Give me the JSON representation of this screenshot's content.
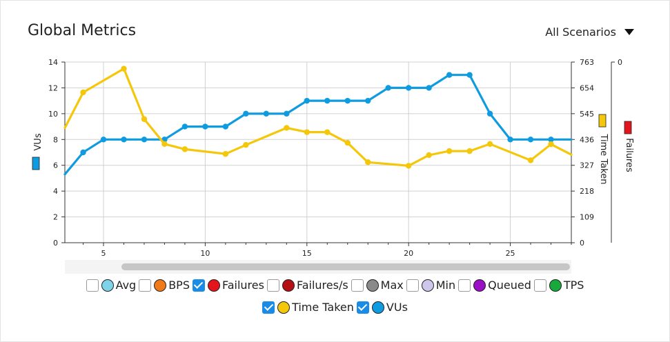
{
  "header": {
    "title": "Global Metrics",
    "scenario_label": "All Scenarios"
  },
  "colors": {
    "vus": "#0f9be0",
    "time_taken": "#f5c70a",
    "failures": "#e3141b",
    "grid": "#d0d0d0"
  },
  "chart_data": {
    "type": "line",
    "x_ticks": [
      5,
      10,
      15,
      20,
      25
    ],
    "xlim": [
      3.1,
      28
    ],
    "grid": true,
    "left_axis": {
      "label": "VUs",
      "ylim": [
        0,
        14
      ],
      "ticks": [
        "0",
        "2",
        "4",
        "6",
        "8",
        "10",
        "12",
        "14"
      ]
    },
    "right_axis_1": {
      "label": "Time Taken",
      "ylim": [
        0,
        763
      ],
      "ticks": [
        "0",
        "109",
        "218",
        "327",
        "436",
        "545",
        "654",
        "763"
      ]
    },
    "right_axis_2": {
      "label": "Failures",
      "ticks": [
        "0"
      ]
    },
    "series": [
      {
        "name": "VUs",
        "axis": "left",
        "x": [
          3.1,
          4,
          5,
          6,
          7,
          8,
          9,
          10,
          11,
          12,
          13,
          14,
          15,
          16,
          17,
          18,
          19,
          20,
          21,
          22,
          23,
          24,
          25,
          26,
          27,
          28
        ],
        "y": [
          5.3,
          7,
          8,
          8,
          8,
          8,
          9,
          9,
          9,
          10,
          10,
          10,
          11,
          11,
          11,
          11,
          12,
          12,
          12,
          13,
          13,
          10,
          8,
          8,
          8,
          8
        ]
      },
      {
        "name": "Time Taken",
        "axis": "right",
        "x": [
          3.1,
          4,
          6,
          7,
          8,
          9,
          11,
          12,
          14,
          15,
          16,
          17,
          18,
          20,
          21,
          22,
          23,
          24,
          26,
          27,
          28
        ],
        "y": [
          485,
          635,
          735,
          522,
          417,
          395,
          375,
          413,
          485,
          467,
          467,
          422,
          340,
          325,
          370,
          387,
          387,
          417,
          348,
          416,
          372
        ]
      }
    ]
  },
  "legend": {
    "items": [
      {
        "label": "Avg",
        "color": "#7fd3e8",
        "checked": false
      },
      {
        "label": "BPS",
        "color": "#f07a1a",
        "checked": false
      },
      {
        "label": "Failures",
        "color": "#e3141b",
        "checked": true
      },
      {
        "label": "Failures/s",
        "color": "#b30f15",
        "checked": false
      },
      {
        "label": "Max",
        "color": "#8a8a8a",
        "checked": false
      },
      {
        "label": "Min",
        "color": "#cfc6ec",
        "checked": false
      },
      {
        "label": "Queued",
        "color": "#9b10c4",
        "checked": false
      },
      {
        "label": "TPS",
        "color": "#19a83c",
        "checked": false
      },
      {
        "label": "Time Taken",
        "color": "#f5c70a",
        "checked": true
      },
      {
        "label": "VUs",
        "color": "#0f9be0",
        "checked": true
      }
    ]
  }
}
